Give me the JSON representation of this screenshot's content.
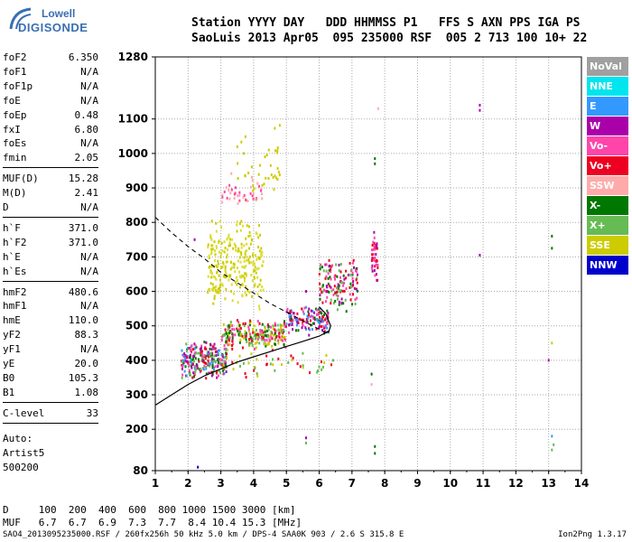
{
  "logo": {
    "line1": "Lowell",
    "line2": "DIGISONDE"
  },
  "header": {
    "line1": "Station YYYY DAY   DDD HHMMSS P1   FFS S AXN PPS IGA PS",
    "line2": "SaoLuis 2013 Apr05  095 235000 RSF  005 2 713 100 10+ 22"
  },
  "params_group1": [
    {
      "k": "foF2",
      "v": "6.350"
    },
    {
      "k": "foF1",
      "v": "N/A"
    },
    {
      "k": "foF1p",
      "v": "N/A"
    },
    {
      "k": "foE",
      "v": "N/A"
    },
    {
      "k": "foEp",
      "v": "0.48"
    },
    {
      "k": "fxI",
      "v": "6.80"
    },
    {
      "k": "foEs",
      "v": "N/A"
    },
    {
      "k": "fmin",
      "v": "2.05"
    }
  ],
  "params_group2": [
    {
      "k": "MUF(D)",
      "v": "15.28"
    },
    {
      "k": "M(D)",
      "v": "2.41"
    },
    {
      "k": "D",
      "v": "N/A"
    }
  ],
  "params_group3": [
    {
      "k": "h`F",
      "v": "371.0"
    },
    {
      "k": "h`F2",
      "v": "371.0"
    },
    {
      "k": "h`E",
      "v": "N/A"
    },
    {
      "k": "h`Es",
      "v": "N/A"
    }
  ],
  "params_group4": [
    {
      "k": "hmF2",
      "v": "480.6"
    },
    {
      "k": "hmF1",
      "v": "N/A"
    },
    {
      "k": "hmE",
      "v": "110.0"
    },
    {
      "k": "yF2",
      "v": "88.3"
    },
    {
      "k": "yF1",
      "v": "N/A"
    },
    {
      "k": "yE",
      "v": "20.0"
    },
    {
      "k": "B0",
      "v": "105.3"
    },
    {
      "k": "B1",
      "v": "1.08"
    }
  ],
  "params_group5": [
    {
      "k": "C-level",
      "v": "33"
    }
  ],
  "auto": {
    "line1": "Auto:",
    "line2": "Artist5",
    "line3": "500200"
  },
  "legend": [
    {
      "label": "NoVal",
      "color": "#a0a0a0"
    },
    {
      "label": "NNE",
      "color": "#00e5ee"
    },
    {
      "label": "E",
      "color": "#3399ff"
    },
    {
      "label": "W",
      "color": "#aa00aa"
    },
    {
      "label": "Vo-",
      "color": "#ff44aa"
    },
    {
      "label": "Vo+",
      "color": "#ee0022"
    },
    {
      "label": "SSW",
      "color": "#ffaaaa"
    },
    {
      "label": "X-",
      "color": "#007700"
    },
    {
      "label": "X+",
      "color": "#66bb55"
    },
    {
      "label": "SSE",
      "color": "#cccc00"
    },
    {
      "label": "NNW",
      "color": "#0000cc"
    }
  ],
  "footer": {
    "dist_line": "D     100  200  400  600  800 1000 1500 3000 [km]",
    "muf_line": "MUF   6.7  6.7  6.9  7.3  7.7  8.4 10.4 15.3 [MHz]",
    "file_line": "SAO4_2013095235000.RSF / 260fx256h 50 kHz 5.0 km / DPS-4 SAA0K 903 / 2.6 S 315.8 E",
    "version": "Ion2Png 1.3.17"
  },
  "chart_data": {
    "type": "scatter",
    "xlim": [
      1,
      14
    ],
    "ylim": [
      80,
      1280
    ],
    "xticks": [
      "1",
      "2",
      "3",
      "4",
      "5",
      "6",
      "7",
      "8",
      "9",
      "10",
      "11",
      "12",
      "13",
      "14"
    ],
    "yticks": [
      {
        "v": 80,
        "label": "80"
      },
      {
        "v": 200,
        "label": "200"
      },
      {
        "v": 300,
        "label": "300"
      },
      {
        "v": 400,
        "label": "400"
      },
      {
        "v": 500,
        "label": "500"
      },
      {
        "v": 600,
        "label": "600"
      },
      {
        "v": 700,
        "label": "700"
      },
      {
        "v": 800,
        "label": "800"
      },
      {
        "v": 900,
        "label": "900"
      },
      {
        "v": 1000,
        "label": "1000"
      },
      {
        "v": 1100,
        "label": "1100"
      },
      {
        "v": 1280,
        "label": "1280"
      }
    ],
    "grid": true,
    "clusters": [
      {
        "name": "F2 o-trace",
        "colors": [
          "#ee0022",
          "#ff44aa",
          "#aa00aa",
          "#66bb55",
          "#007700",
          "#3399ff"
        ],
        "x": [
          1.8,
          3.2
        ],
        "y": [
          340,
          460
        ],
        "n": 260
      },
      {
        "name": "F2 spread",
        "colors": [
          "#cccc00",
          "#66bb55",
          "#007700",
          "#ee0022",
          "#ff44aa"
        ],
        "x": [
          3.0,
          5.0
        ],
        "y": [
          430,
          520
        ],
        "n": 240
      },
      {
        "name": "F2 upper",
        "colors": [
          "#ee0022",
          "#aa00aa",
          "#ff44aa",
          "#007700",
          "#3399ff"
        ],
        "x": [
          5.0,
          6.3
        ],
        "y": [
          470,
          560
        ],
        "n": 140
      },
      {
        "name": "F2 x-trace",
        "colors": [
          "#ee0022",
          "#aa00aa",
          "#ff44aa",
          "#66bb55",
          "#007700"
        ],
        "x": [
          6.0,
          7.2
        ],
        "y": [
          530,
          700
        ],
        "n": 140
      },
      {
        "name": "SSE oblique",
        "colors": [
          "#cccc00",
          "#dddd33"
        ],
        "x": [
          2.6,
          4.3
        ],
        "y": [
          540,
          820
        ],
        "n": 260
      },
      {
        "name": "SSE high",
        "colors": [
          "#cccc00"
        ],
        "x": [
          3.5,
          4.8
        ],
        "y": [
          820,
          1120
        ],
        "n": 40
      },
      {
        "name": "SSW high",
        "colors": [
          "#ffaaaa",
          "#ff44aa"
        ],
        "x": [
          3.0,
          4.3
        ],
        "y": [
          830,
          950
        ],
        "n": 40
      },
      {
        "name": "Vo+ spike",
        "colors": [
          "#ee0022",
          "#aa00aa",
          "#ff44aa"
        ],
        "x": [
          7.6,
          7.8
        ],
        "y": [
          600,
          780
        ],
        "n": 40
      },
      {
        "name": "low scatter",
        "colors": [
          "#66bb55",
          "#cccc00",
          "#ee0022"
        ],
        "x": [
          3.0,
          6.5
        ],
        "y": [
          340,
          440
        ],
        "n": 50
      }
    ],
    "isolated_points": [
      {
        "x": 10.9,
        "y": 1140,
        "color": "#aa00aa"
      },
      {
        "x": 10.9,
        "y": 1125,
        "color": "#aa00aa"
      },
      {
        "x": 7.7,
        "y": 985,
        "color": "#007700"
      },
      {
        "x": 7.7,
        "y": 970,
        "color": "#007700"
      },
      {
        "x": 7.8,
        "y": 1130,
        "color": "#ffaaaa"
      },
      {
        "x": 13.1,
        "y": 760,
        "color": "#007700"
      },
      {
        "x": 13.1,
        "y": 725,
        "color": "#007700"
      },
      {
        "x": 10.9,
        "y": 705,
        "color": "#aa00aa"
      },
      {
        "x": 13.1,
        "y": 450,
        "color": "#cccc00"
      },
      {
        "x": 13.0,
        "y": 400,
        "color": "#aa00aa"
      },
      {
        "x": 13.1,
        "y": 180,
        "color": "#3399ff"
      },
      {
        "x": 13.15,
        "y": 155,
        "color": "#66bb55"
      },
      {
        "x": 13.1,
        "y": 140,
        "color": "#66bb55"
      },
      {
        "x": 7.7,
        "y": 150,
        "color": "#007700"
      },
      {
        "x": 7.7,
        "y": 130,
        "color": "#007700"
      },
      {
        "x": 5.6,
        "y": 175,
        "color": "#aa00aa"
      },
      {
        "x": 5.6,
        "y": 160,
        "color": "#66bb55"
      },
      {
        "x": 2.2,
        "y": 750,
        "color": "#aa00aa"
      },
      {
        "x": 5.5,
        "y": 420,
        "color": "#66bb55"
      },
      {
        "x": 7.6,
        "y": 360,
        "color": "#007700"
      },
      {
        "x": 7.6,
        "y": 330,
        "color": "#ffaaaa"
      },
      {
        "x": 5.6,
        "y": 600,
        "color": "#aa00aa"
      },
      {
        "x": 2.3,
        "y": 90,
        "color": "#0000cc"
      }
    ],
    "profile_solid": [
      [
        1.0,
        270
      ],
      [
        1.5,
        300
      ],
      [
        2.0,
        330
      ],
      [
        2.5,
        355
      ],
      [
        3.0,
        375
      ],
      [
        3.5,
        395
      ],
      [
        4.0,
        410
      ],
      [
        4.5,
        425
      ],
      [
        5.0,
        440
      ],
      [
        5.5,
        455
      ],
      [
        6.0,
        470
      ],
      [
        6.3,
        485
      ],
      [
        6.35,
        500
      ],
      [
        6.2,
        535
      ],
      [
        6.0,
        555
      ]
    ],
    "profile_dashed": [
      [
        1.0,
        815
      ],
      [
        1.5,
        770
      ],
      [
        2.0,
        730
      ],
      [
        2.5,
        695
      ],
      [
        3.0,
        655
      ],
      [
        3.5,
        625
      ],
      [
        4.0,
        595
      ],
      [
        4.5,
        565
      ],
      [
        5.0,
        540
      ],
      [
        5.5,
        515
      ],
      [
        6.0,
        490
      ],
      [
        6.3,
        475
      ]
    ]
  }
}
